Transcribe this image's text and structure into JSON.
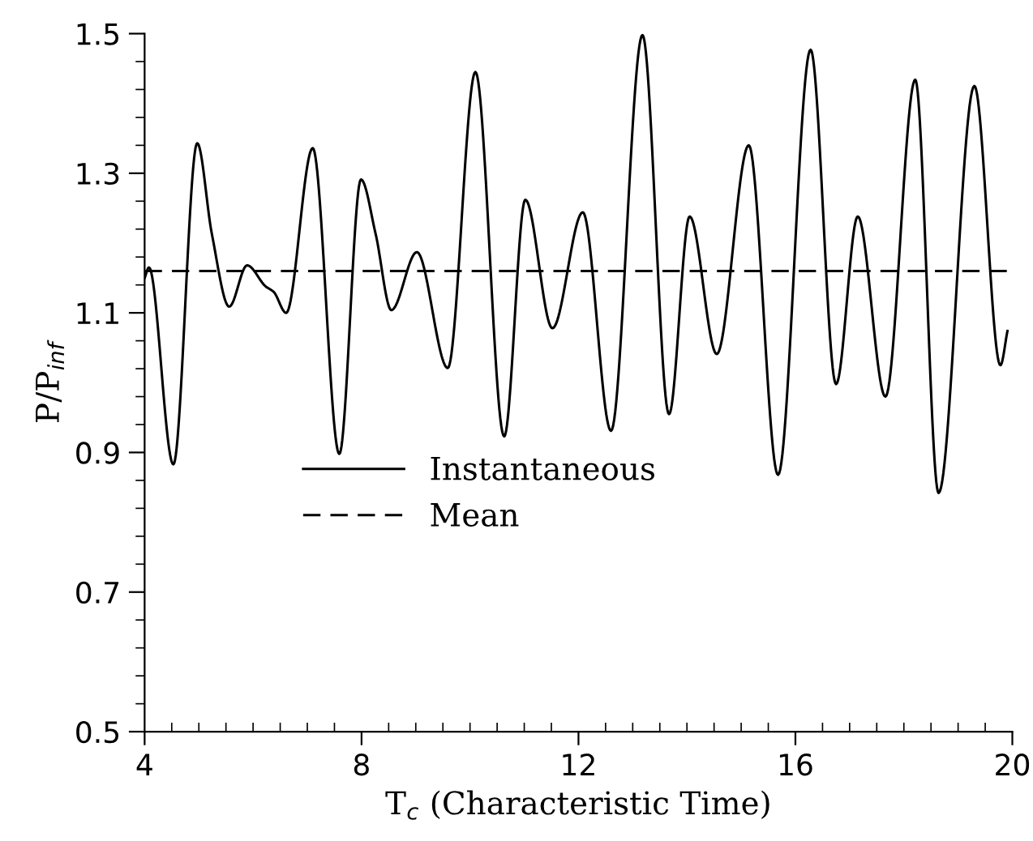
{
  "chart_data": {
    "type": "line",
    "xlabel": "T$_{c}$ (Characteristic Time)",
    "ylabel": "P/P$_{inf}$",
    "xlim": [
      4,
      20
    ],
    "ylim": [
      0.5,
      1.5
    ],
    "xticks": [
      4,
      {
        "value": 4.5,
        "label": null
      },
      {
        "value": 5,
        "label": null
      },
      {
        "value": 5.5,
        "label": null
      },
      {
        "value": 6,
        "label": null
      },
      {
        "value": 6.5,
        "label": null
      },
      {
        "value": 7,
        "label": null
      },
      {
        "value": 7.5,
        "label": null
      },
      8,
      {
        "value": 8.5,
        "label": null
      },
      {
        "value": 9,
        "label": null
      },
      {
        "value": 9.5,
        "label": null
      },
      {
        "value": 10,
        "label": null
      },
      {
        "value": 10.5,
        "label": null
      },
      {
        "value": 11,
        "label": null
      },
      {
        "value": 11.5,
        "label": null
      },
      12,
      {
        "value": 12.5,
        "label": null
      },
      {
        "value": 13,
        "label": null
      },
      {
        "value": 13.5,
        "label": null
      },
      {
        "value": 14,
        "label": null
      },
      {
        "value": 14.5,
        "label": null
      },
      {
        "value": 15,
        "label": null
      },
      {
        "value": 15.5,
        "label": null
      },
      16,
      {
        "value": 16.5,
        "label": null
      },
      {
        "value": 17,
        "label": null
      },
      {
        "value": 17.5,
        "label": null
      },
      {
        "value": 18,
        "label": null
      },
      {
        "value": 18.5,
        "label": null
      },
      {
        "value": 19,
        "label": null
      },
      {
        "value": 19.5,
        "label": null
      },
      20
    ],
    "yticks": [
      0.5,
      {
        "value": 0.54,
        "label": null
      },
      {
        "value": 0.58,
        "label": null
      },
      {
        "value": 0.62,
        "label": null
      },
      {
        "value": 0.66,
        "label": null
      },
      0.7,
      {
        "value": 0.74,
        "label": null
      },
      {
        "value": 0.78,
        "label": null
      },
      {
        "value": 0.82,
        "label": null
      },
      {
        "value": 0.86,
        "label": null
      },
      0.9,
      {
        "value": 0.94,
        "label": null
      },
      {
        "value": 0.98,
        "label": null
      },
      {
        "value": 1.02,
        "label": null
      },
      {
        "value": 1.06,
        "label": null
      },
      1.1,
      {
        "value": 1.14,
        "label": null
      },
      {
        "value": 1.18,
        "label": null
      },
      {
        "value": 1.22,
        "label": null
      },
      {
        "value": 1.26,
        "label": null
      },
      1.3,
      {
        "value": 1.34,
        "label": null
      },
      {
        "value": 1.38,
        "label": null
      },
      {
        "value": 1.42,
        "label": null
      },
      {
        "value": 1.46,
        "label": null
      },
      1.5
    ],
    "grid": false,
    "legend": "center left",
    "marker": "none",
    "series": [
      {
        "name": "Instantaneous",
        "color": "#000000",
        "line_style": "solid",
        "x": [
          4.0,
          4.08,
          4.53,
          4.97,
          5.24,
          5.56,
          5.89,
          6.23,
          6.38,
          6.61,
          7.1,
          7.59,
          7.99,
          8.26,
          8.55,
          9.02,
          9.59,
          10.1,
          10.63,
          11.02,
          11.52,
          12.08,
          12.6,
          13.18,
          13.67,
          14.05,
          14.55,
          15.14,
          15.68,
          16.28,
          16.75,
          17.15,
          17.66,
          18.21,
          18.64,
          19.3,
          19.78,
          19.91
        ],
        "values": [
          1.15,
          1.165,
          0.883,
          1.343,
          1.213,
          1.109,
          1.168,
          1.138,
          1.13,
          1.1,
          1.336,
          0.898,
          1.291,
          1.213,
          1.104,
          1.187,
          1.021,
          1.445,
          0.923,
          1.262,
          1.078,
          1.244,
          0.931,
          1.498,
          0.955,
          1.238,
          1.041,
          1.34,
          0.868,
          1.477,
          0.998,
          1.238,
          0.98,
          1.434,
          0.842,
          1.425,
          1.025,
          1.074
        ]
      },
      {
        "name": "Mean",
        "color": "#000000",
        "line_style": "dashed",
        "x": [
          4,
          20
        ],
        "values": [
          1.16,
          1.16
        ]
      }
    ]
  }
}
